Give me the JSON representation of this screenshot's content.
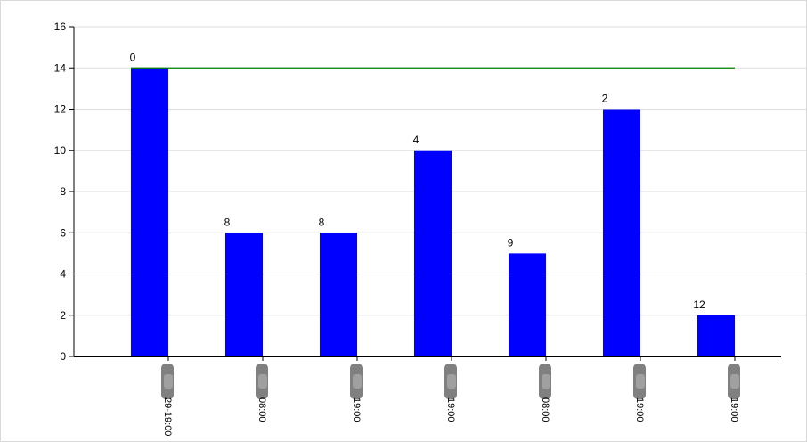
{
  "chart_data": {
    "type": "bar",
    "categories": [
      "29-19:00",
      "08:00",
      "19:00",
      "19:00",
      "08:00",
      "19:00",
      "19:00"
    ],
    "values": [
      14,
      6,
      6,
      10,
      5,
      12,
      2
    ],
    "data_labels": [
      "0",
      "8",
      "8",
      "4",
      "9",
      "2",
      "12"
    ],
    "reference_line": {
      "y": 14
    },
    "ylim": [
      0,
      16
    ],
    "yticks": [
      "0",
      "2",
      "4",
      "6",
      "8",
      "10",
      "12",
      "14",
      "16"
    ],
    "grid": true,
    "colors": {
      "bar": "#0000ff",
      "line": "#008000",
      "grid": "#dddddd",
      "axis": "#000000"
    }
  }
}
